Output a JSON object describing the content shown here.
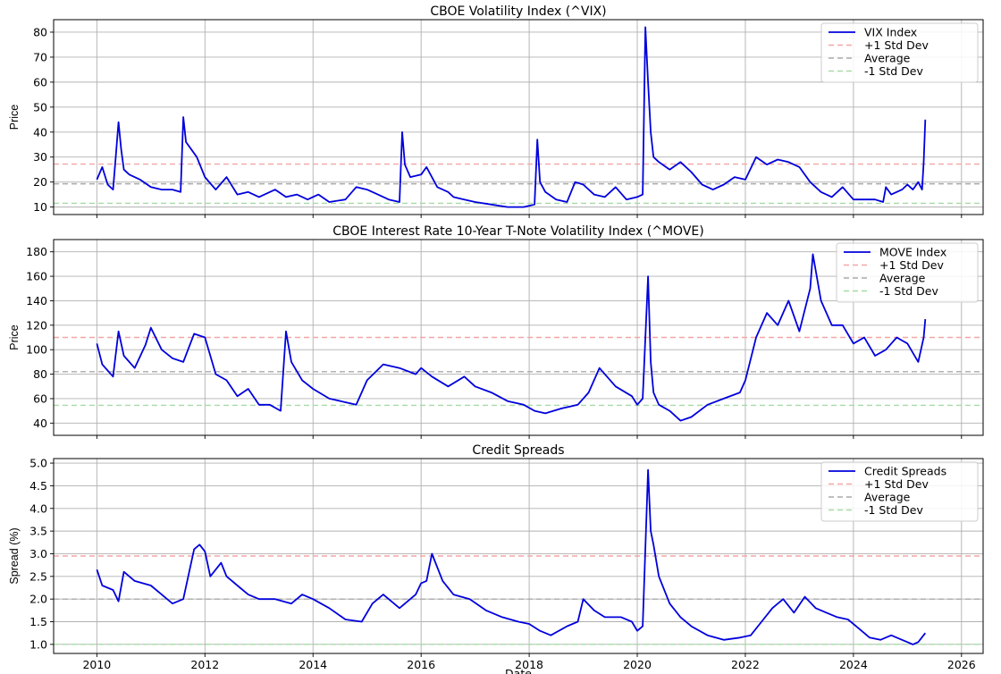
{
  "x_label": "Date",
  "x_ticks": [
    "2010",
    "2012",
    "2014",
    "2016",
    "2018",
    "2020",
    "2022",
    "2024",
    "2026"
  ],
  "chart_data": [
    {
      "type": "line",
      "title": "CBOE Volatility Index (^VIX)",
      "ylabel": "Price",
      "xlabel": "",
      "xlim": [
        2009.2,
        2026.4
      ],
      "ylim": [
        7,
        85
      ],
      "yticks": [
        10,
        20,
        30,
        40,
        50,
        60,
        70,
        80
      ],
      "ytick_labels": [
        "10",
        "20",
        "30",
        "40",
        "50",
        "60",
        "70",
        "80"
      ],
      "grid": true,
      "legend_position": "top-right",
      "series": [
        {
          "name": "VIX Index",
          "color": "#0000dd",
          "x": [
            2010.0,
            2010.1,
            2010.2,
            2010.3,
            2010.35,
            2010.4,
            2010.45,
            2010.5,
            2010.6,
            2010.8,
            2011.0,
            2011.2,
            2011.4,
            2011.55,
            2011.6,
            2011.65,
            2011.75,
            2011.85,
            2012.0,
            2012.2,
            2012.4,
            2012.6,
            2012.8,
            2013.0,
            2013.3,
            2013.5,
            2013.7,
            2013.9,
            2014.1,
            2014.3,
            2014.6,
            2014.8,
            2015.0,
            2015.2,
            2015.4,
            2015.6,
            2015.65,
            2015.7,
            2015.8,
            2016.0,
            2016.1,
            2016.3,
            2016.5,
            2016.6,
            2016.8,
            2017.0,
            2017.3,
            2017.6,
            2017.9,
            2018.1,
            2018.15,
            2018.2,
            2018.3,
            2018.5,
            2018.7,
            2018.85,
            2019.0,
            2019.2,
            2019.4,
            2019.6,
            2019.8,
            2020.0,
            2020.1,
            2020.15,
            2020.2,
            2020.25,
            2020.3,
            2020.4,
            2020.6,
            2020.8,
            2021.0,
            2021.2,
            2021.4,
            2021.6,
            2021.8,
            2022.0,
            2022.2,
            2022.4,
            2022.6,
            2022.8,
            2023.0,
            2023.2,
            2023.4,
            2023.6,
            2023.8,
            2024.0,
            2024.2,
            2024.4,
            2024.55,
            2024.6,
            2024.7,
            2024.9,
            2025.0,
            2025.1,
            2025.2,
            2025.27,
            2025.3,
            2025.33
          ],
          "y": [
            21,
            26,
            19,
            17,
            30,
            44,
            33,
            25,
            23,
            21,
            18,
            17,
            17,
            16,
            46,
            36,
            33,
            30,
            22,
            17,
            22,
            15,
            16,
            14,
            17,
            14,
            15,
            13,
            15,
            12,
            13,
            18,
            17,
            15,
            13,
            12,
            40,
            27,
            22,
            23,
            26,
            18,
            16,
            14,
            13,
            12,
            11,
            10,
            10,
            11,
            37,
            20,
            16,
            13,
            12,
            20,
            19,
            15,
            14,
            18,
            13,
            14,
            15,
            82,
            60,
            40,
            30,
            28,
            25,
            28,
            24,
            19,
            17,
            19,
            22,
            21,
            30,
            27,
            29,
            28,
            26,
            20,
            16,
            14,
            18,
            13,
            13,
            13,
            12,
            18,
            15,
            17,
            19,
            17,
            20,
            17,
            28,
            45
          ]
        },
        {
          "name": "+1 Std Dev",
          "color": "#f4a6a6",
          "dashed": true,
          "level": 27.2
        },
        {
          "name": "Average",
          "color": "#aaaaaa",
          "dashed": true,
          "level": 19.3
        },
        {
          "name": "-1 Std Dev",
          "color": "#a6dba6",
          "dashed": true,
          "level": 11.5
        }
      ]
    },
    {
      "type": "line",
      "title": "CBOE Interest Rate 10-Year T-Note Volatility Index (^MOVE)",
      "ylabel": "Price",
      "xlabel": "",
      "xlim": [
        2009.2,
        2026.4
      ],
      "ylim": [
        30,
        190
      ],
      "yticks": [
        40,
        60,
        80,
        100,
        120,
        140,
        160,
        180
      ],
      "ytick_labels": [
        "40",
        "60",
        "80",
        "100",
        "120",
        "140",
        "160",
        "180"
      ],
      "grid": true,
      "legend_position": "top-right",
      "series": [
        {
          "name": "MOVE Index",
          "color": "#0000dd",
          "x": [
            2010.0,
            2010.1,
            2010.3,
            2010.4,
            2010.5,
            2010.7,
            2010.9,
            2011.0,
            2011.2,
            2011.4,
            2011.6,
            2011.8,
            2012.0,
            2012.2,
            2012.4,
            2012.6,
            2012.8,
            2013.0,
            2013.2,
            2013.4,
            2013.5,
            2013.6,
            2013.8,
            2014.0,
            2014.3,
            2014.6,
            2014.8,
            2015.0,
            2015.3,
            2015.6,
            2015.9,
            2016.0,
            2016.2,
            2016.5,
            2016.8,
            2017.0,
            2017.3,
            2017.6,
            2017.9,
            2018.1,
            2018.3,
            2018.6,
            2018.9,
            2019.1,
            2019.3,
            2019.6,
            2019.9,
            2020.0,
            2020.1,
            2020.2,
            2020.25,
            2020.3,
            2020.4,
            2020.6,
            2020.8,
            2021.0,
            2021.3,
            2021.6,
            2021.9,
            2022.0,
            2022.2,
            2022.4,
            2022.6,
            2022.8,
            2023.0,
            2023.2,
            2023.25,
            2023.4,
            2023.6,
            2023.8,
            2024.0,
            2024.2,
            2024.4,
            2024.6,
            2024.8,
            2025.0,
            2025.2,
            2025.3,
            2025.33
          ],
          "y": [
            105,
            88,
            78,
            115,
            95,
            85,
            104,
            118,
            100,
            93,
            90,
            113,
            110,
            80,
            75,
            62,
            68,
            55,
            55,
            50,
            115,
            90,
            75,
            68,
            60,
            57,
            55,
            75,
            88,
            85,
            80,
            85,
            78,
            70,
            78,
            70,
            65,
            58,
            55,
            50,
            48,
            52,
            55,
            65,
            85,
            70,
            62,
            55,
            60,
            160,
            90,
            65,
            55,
            50,
            42,
            45,
            55,
            60,
            65,
            75,
            110,
            130,
            120,
            140,
            115,
            150,
            178,
            140,
            120,
            120,
            105,
            110,
            95,
            100,
            110,
            105,
            90,
            110,
            125
          ]
        },
        {
          "name": "+1 Std Dev",
          "color": "#f4a6a6",
          "dashed": true,
          "level": 110
        },
        {
          "name": "Average",
          "color": "#aaaaaa",
          "dashed": true,
          "level": 82
        },
        {
          "name": "-1 Std Dev",
          "color": "#a6dba6",
          "dashed": true,
          "level": 54.5
        }
      ]
    },
    {
      "type": "line",
      "title": "Credit Spreads",
      "ylabel": "Spread (%)",
      "xlabel": "Date",
      "xlim": [
        2009.2,
        2026.4
      ],
      "ylim": [
        0.8,
        5.1
      ],
      "yticks": [
        1.0,
        1.5,
        2.0,
        2.5,
        3.0,
        3.5,
        4.0,
        4.5,
        5.0
      ],
      "ytick_labels": [
        "1.0",
        "1.5",
        "2.0",
        "2.5",
        "3.0",
        "3.5",
        "4.0",
        "4.5",
        "5.0"
      ],
      "grid": true,
      "legend_position": "top-right",
      "series": [
        {
          "name": "Credit Spreads",
          "color": "#0000dd",
          "x": [
            2010.0,
            2010.1,
            2010.3,
            2010.4,
            2010.5,
            2010.7,
            2011.0,
            2011.2,
            2011.4,
            2011.6,
            2011.8,
            2011.9,
            2012.0,
            2012.1,
            2012.3,
            2012.4,
            2012.6,
            2012.8,
            2013.0,
            2013.3,
            2013.6,
            2013.8,
            2014.0,
            2014.3,
            2014.6,
            2014.9,
            2015.1,
            2015.3,
            2015.6,
            2015.9,
            2016.0,
            2016.1,
            2016.2,
            2016.4,
            2016.6,
            2016.9,
            2017.2,
            2017.5,
            2017.8,
            2018.0,
            2018.2,
            2018.4,
            2018.7,
            2018.9,
            2019.0,
            2019.2,
            2019.4,
            2019.7,
            2019.9,
            2020.0,
            2020.1,
            2020.2,
            2020.25,
            2020.3,
            2020.4,
            2020.6,
            2020.8,
            2021.0,
            2021.3,
            2021.6,
            2021.9,
            2022.1,
            2022.3,
            2022.5,
            2022.7,
            2022.9,
            2023.1,
            2023.3,
            2023.5,
            2023.7,
            2023.9,
            2024.1,
            2024.3,
            2024.5,
            2024.7,
            2024.9,
            2025.0,
            2025.1,
            2025.2,
            2025.33
          ],
          "y": [
            2.65,
            2.3,
            2.2,
            1.95,
            2.6,
            2.4,
            2.3,
            2.1,
            1.9,
            2.0,
            3.1,
            3.2,
            3.05,
            2.5,
            2.8,
            2.5,
            2.3,
            2.1,
            2.0,
            2.0,
            1.9,
            2.1,
            2.0,
            1.8,
            1.55,
            1.5,
            1.9,
            2.1,
            1.8,
            2.1,
            2.35,
            2.4,
            3.0,
            2.4,
            2.1,
            2.0,
            1.75,
            1.6,
            1.5,
            1.45,
            1.3,
            1.2,
            1.4,
            1.5,
            2.0,
            1.75,
            1.6,
            1.6,
            1.5,
            1.3,
            1.4,
            4.85,
            3.5,
            3.2,
            2.5,
            1.9,
            1.6,
            1.4,
            1.2,
            1.1,
            1.15,
            1.2,
            1.5,
            1.8,
            2.0,
            1.7,
            2.05,
            1.8,
            1.7,
            1.6,
            1.55,
            1.35,
            1.15,
            1.1,
            1.2,
            1.1,
            1.05,
            1.0,
            1.05,
            1.25
          ]
        },
        {
          "name": "+1 Std Dev",
          "color": "#f4a6a6",
          "dashed": true,
          "level": 2.95
        },
        {
          "name": "Average",
          "color": "#aaaaaa",
          "dashed": true,
          "level": 2.0
        },
        {
          "name": "-1 Std Dev",
          "color": "#a6dba6",
          "dashed": true,
          "level": 1.0
        }
      ]
    }
  ]
}
